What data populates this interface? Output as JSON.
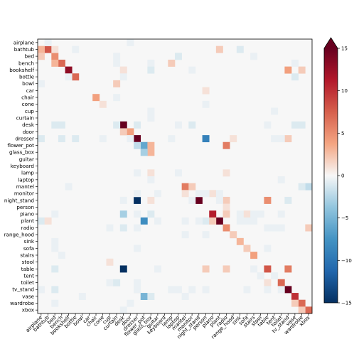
{
  "chart_data": {
    "type": "heatmap",
    "title": "",
    "xlabel": "",
    "ylabel": "",
    "labels": [
      "airplane",
      "bathtub",
      "bed",
      "bench",
      "bookshelf",
      "bottle",
      "bowl",
      "car",
      "chair",
      "cone",
      "cup",
      "curtain",
      "desk",
      "door",
      "dresser",
      "flower_pot",
      "glass_box",
      "guitar",
      "keyboard",
      "lamp",
      "laptop",
      "mantel",
      "monitor",
      "night_stand",
      "person",
      "piano",
      "plant",
      "radio",
      "range_hood",
      "sink",
      "sofa",
      "stairs",
      "stool",
      "table",
      "tent",
      "toilet",
      "tv_stand",
      "vase",
      "wardrobe",
      "xbox"
    ],
    "colorbar": {
      "min": -15,
      "max": 15,
      "ticks": [
        -15,
        -10,
        -5,
        0,
        5,
        10,
        15
      ],
      "extend": "max",
      "colormap": "RdBu_r"
    },
    "cells": [
      [
        1,
        1,
        8
      ],
      [
        2,
        2,
        5
      ],
      [
        3,
        3,
        7
      ],
      [
        4,
        4,
        13
      ],
      [
        5,
        5,
        7
      ],
      [
        8,
        8,
        4
      ],
      [
        9,
        9,
        1
      ],
      [
        12,
        12,
        15
      ],
      [
        13,
        13,
        4
      ],
      [
        14,
        14,
        15
      ],
      [
        15,
        15,
        -6
      ],
      [
        16,
        16,
        3
      ],
      [
        21,
        21,
        6
      ],
      [
        23,
        23,
        15
      ],
      [
        25,
        25,
        11
      ],
      [
        26,
        26,
        15
      ],
      [
        27,
        27,
        5
      ],
      [
        28,
        28,
        2
      ],
      [
        29,
        29,
        3
      ],
      [
        30,
        30,
        2
      ],
      [
        31,
        31,
        4
      ],
      [
        33,
        33,
        8
      ],
      [
        35,
        35,
        7
      ],
      [
        36,
        36,
        15
      ],
      [
        37,
        37,
        10
      ],
      [
        38,
        38,
        7
      ],
      [
        39,
        39,
        7
      ],
      [
        1,
        0,
        3
      ],
      [
        1,
        2,
        1
      ],
      [
        1,
        26,
        2
      ],
      [
        2,
        0,
        2
      ],
      [
        3,
        2,
        3
      ],
      [
        3,
        19,
        2
      ],
      [
        4,
        12,
        1
      ],
      [
        4,
        36,
        4
      ],
      [
        4,
        38,
        2
      ],
      [
        6,
        11,
        2
      ],
      [
        7,
        24,
        1
      ],
      [
        12,
        11,
        -1
      ],
      [
        13,
        12,
        2
      ],
      [
        14,
        0,
        -1
      ],
      [
        14,
        3,
        -1
      ],
      [
        14,
        24,
        -9
      ],
      [
        14,
        28,
        1
      ],
      [
        14,
        36,
        2
      ],
      [
        15,
        14,
        -2
      ],
      [
        15,
        16,
        3
      ],
      [
        15,
        27,
        6
      ],
      [
        16,
        15,
        -3
      ],
      [
        19,
        16,
        1
      ],
      [
        19,
        27,
        1
      ],
      [
        21,
        22,
        2
      ],
      [
        21,
        39,
        -2
      ],
      [
        22,
        21,
        1
      ],
      [
        22,
        25,
        1
      ],
      [
        23,
        14,
        -15
      ],
      [
        23,
        16,
        1
      ],
      [
        23,
        27,
        2
      ],
      [
        23,
        33,
        5
      ],
      [
        24,
        27,
        1
      ],
      [
        25,
        12,
        -3
      ],
      [
        25,
        16,
        -1
      ],
      [
        25,
        27,
        2
      ],
      [
        25,
        30,
        1
      ],
      [
        26,
        0,
        -1
      ],
      [
        26,
        1,
        1
      ],
      [
        26,
        15,
        -8
      ],
      [
        26,
        24,
        -1
      ],
      [
        26,
        25,
        2
      ],
      [
        27,
        39,
        2
      ],
      [
        32,
        10,
        1
      ],
      [
        33,
        12,
        -15
      ],
      [
        33,
        24,
        2
      ],
      [
        33,
        27,
        2
      ],
      [
        33,
        36,
        6
      ],
      [
        35,
        33,
        1
      ],
      [
        36,
        14,
        1
      ],
      [
        37,
        15,
        -5
      ],
      [
        38,
        37,
        2
      ],
      [
        39,
        38,
        2
      ],
      [
        0,
        1,
        -0.5
      ],
      [
        0,
        13,
        -0.5
      ],
      [
        1,
        5,
        -0.5
      ],
      [
        1,
        29,
        -1
      ],
      [
        2,
        11,
        -0.5
      ],
      [
        2,
        20,
        -1
      ],
      [
        2,
        31,
        -0.5
      ],
      [
        3,
        11,
        -0.5
      ],
      [
        3,
        16,
        -0.5
      ],
      [
        3,
        37,
        -0.5
      ],
      [
        4,
        16,
        -1
      ],
      [
        4,
        22,
        -0.5
      ],
      [
        5,
        4,
        -0.5
      ],
      [
        5,
        12,
        -0.5
      ],
      [
        5,
        37,
        -1
      ],
      [
        6,
        0,
        -0.5
      ],
      [
        8,
        11,
        -0.5
      ],
      [
        9,
        24,
        -0.5
      ],
      [
        10,
        16,
        -0.5
      ],
      [
        10,
        34,
        -0.5
      ],
      [
        11,
        16,
        -0.5
      ],
      [
        12,
        2,
        -1
      ],
      [
        12,
        3,
        -1
      ],
      [
        12,
        14,
        -1
      ],
      [
        12,
        20,
        -0.5
      ],
      [
        12,
        22,
        -1
      ],
      [
        12,
        33,
        -0.5
      ],
      [
        12,
        37,
        -1
      ],
      [
        12,
        38,
        -1
      ],
      [
        14,
        5,
        -1
      ],
      [
        14,
        9,
        -0.5
      ],
      [
        14,
        13,
        -0.5
      ],
      [
        14,
        19,
        -0.5
      ],
      [
        14,
        34,
        -0.5
      ],
      [
        14,
        35,
        -0.5
      ],
      [
        19,
        14,
        -0.5
      ],
      [
        19,
        20,
        -0.5
      ],
      [
        20,
        16,
        -0.5
      ],
      [
        20,
        35,
        -0.5
      ],
      [
        21,
        4,
        -0.5
      ],
      [
        21,
        38,
        -1
      ],
      [
        22,
        14,
        -0.5
      ],
      [
        22,
        17,
        -0.5
      ],
      [
        22,
        23,
        -0.5
      ],
      [
        22,
        24,
        -0.5
      ],
      [
        22,
        26,
        -0.5
      ],
      [
        23,
        12,
        -0.5
      ],
      [
        23,
        22,
        -0.5
      ],
      [
        23,
        26,
        -0.5
      ],
      [
        23,
        36,
        -1
      ],
      [
        25,
        2,
        -0.5
      ],
      [
        25,
        14,
        -0.5
      ],
      [
        25,
        29,
        -0.5
      ],
      [
        25,
        31,
        -0.5
      ],
      [
        25,
        32,
        -0.5
      ],
      [
        25,
        35,
        -0.5
      ],
      [
        26,
        17,
        -0.5
      ],
      [
        26,
        21,
        -0.5
      ],
      [
        26,
        23,
        -0.5
      ],
      [
        26,
        29,
        -0.5
      ],
      [
        26,
        30,
        -0.5
      ],
      [
        26,
        31,
        -0.5
      ],
      [
        27,
        10,
        -0.5
      ],
      [
        27,
        12,
        -1
      ],
      [
        27,
        14,
        -0.5
      ],
      [
        27,
        33,
        -0.5
      ],
      [
        27,
        34,
        -0.5
      ],
      [
        27,
        35,
        -0.5
      ],
      [
        28,
        21,
        -0.5
      ],
      [
        28,
        24,
        -0.5
      ],
      [
        29,
        2,
        -0.5
      ],
      [
        30,
        2,
        -0.5
      ],
      [
        30,
        14,
        -0.5
      ],
      [
        30,
        33,
        -0.5
      ],
      [
        31,
        3,
        -0.5
      ],
      [
        33,
        2,
        -1
      ],
      [
        33,
        17,
        -0.5
      ],
      [
        33,
        31,
        -0.5
      ],
      [
        34,
        32,
        -0.5
      ],
      [
        34,
        34,
        -0.5
      ],
      [
        35,
        10,
        -0.5
      ],
      [
        35,
        11,
        -1
      ],
      [
        35,
        14,
        -0.5
      ],
      [
        36,
        0,
        -0.5
      ],
      [
        36,
        2,
        -1
      ],
      [
        36,
        14,
        -0.5
      ],
      [
        36,
        19,
        -0.5
      ],
      [
        36,
        20,
        -0.5
      ],
      [
        36,
        22,
        -0.5
      ],
      [
        36,
        24,
        -0.5
      ],
      [
        36,
        30,
        -0.5
      ],
      [
        36,
        33,
        -0.5
      ],
      [
        36,
        35,
        -0.5
      ],
      [
        37,
        6,
        -0.5
      ],
      [
        37,
        16,
        -1
      ],
      [
        37,
        21,
        -0.5
      ],
      [
        38,
        2,
        -0.5
      ],
      [
        38,
        13,
        -0.5
      ],
      [
        39,
        12,
        -0.5
      ]
    ]
  }
}
